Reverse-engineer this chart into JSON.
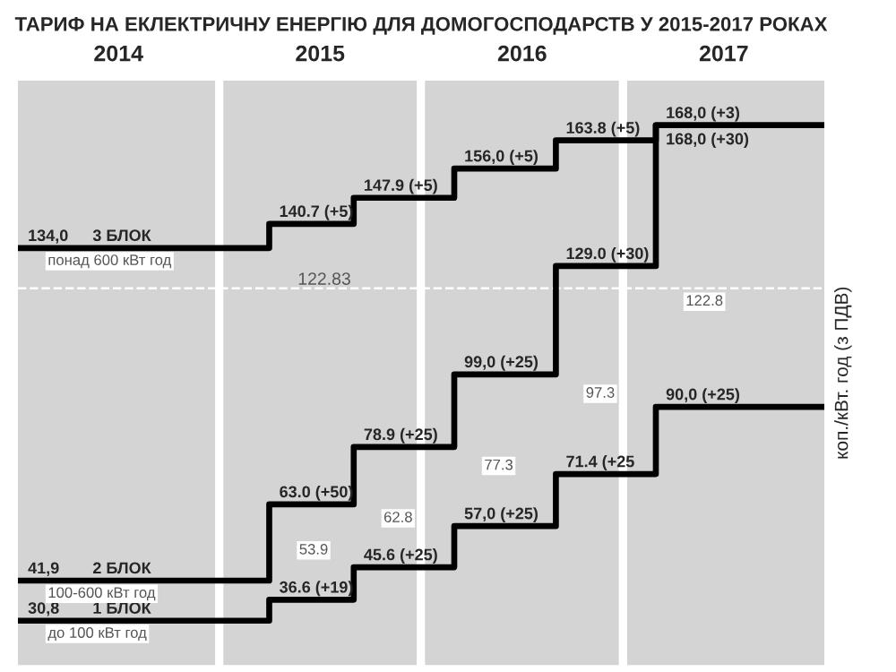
{
  "chart_data": {
    "type": "step",
    "title": "ТАРИФ НА ЕКЛЕКТРИЧНУ ЕНЕРГІЮ ДЛЯ ДОМОГОСПОДАРСТВ У 2015-2017 РОКАХ",
    "ylabel": "коп./кВт. год (з ПДВ)",
    "x": [
      "2014-01-01",
      "2015-04-01",
      "2015-09-01",
      "2016-03-01",
      "2016-09-01",
      "2017-03-01",
      "2017-12-31"
    ],
    "series": [
      {
        "name": "3 БЛОК",
        "color": "#000000",
        "values": [
          134.0,
          140.7,
          147.9,
          156.0,
          163.8,
          168.0,
          168.0
        ],
        "value_labels": [
          "134,0",
          "140.7 (+5)",
          "147.9 (+5)",
          "156,0 (+5)",
          "163.8 (+5)",
          "168,0 (+3)",
          null
        ]
      },
      {
        "name": "2 БЛОК",
        "color": "#000000",
        "values": [
          41.9,
          63.0,
          78.9,
          99.0,
          129.0,
          168.0,
          168.0
        ],
        "value_labels": [
          "41,9",
          "63.0 (+50)",
          "78.9 (+25)",
          "99,0 (+25)",
          "129.0 (+30)",
          "168,0 (+30)",
          null
        ]
      },
      {
        "name": "1 БЛОК",
        "color": "#000000",
        "values": [
          30.8,
          36.6,
          45.6,
          57.0,
          71.4,
          90.0,
          90.0
        ],
        "value_labels": [
          "30,8",
          "36.6 (+19)",
          "45.6 (+25)",
          "57,0 (+25)",
          "71.4 (+25",
          "90,0 (+25)",
          null
        ]
      }
    ],
    "annotations": [
      {
        "text": "понад 600 кВт год",
        "x": "2014-01-01",
        "y": 134.0
      },
      {
        "text": "100-600 кВт год",
        "x": "2014-01-01",
        "y": 41.9
      },
      {
        "text": "до 100 кВт год",
        "x": "2014-01-01",
        "y": 30.8
      },
      {
        "text": "53.9",
        "x": "2015-04-01",
        "y": 53.9
      },
      {
        "text": "62.8",
        "x": "2015-09-01",
        "y": 62.8
      },
      {
        "text": "77.3",
        "x": "2016-03-01",
        "y": 77.3
      },
      {
        "text": "97.3",
        "x": "2016-09-01",
        "y": 97.3
      },
      {
        "text": "122.8",
        "x": "2017-03-01",
        "y": 122.8
      }
    ],
    "ref_lines": [
      {
        "axis": "y",
        "value": 122.83,
        "label": "122.83",
        "color": "#ffffff",
        "line_style": "dashed"
      }
    ],
    "bands": [
      {
        "axis": "x",
        "from": "2014-01-01",
        "to": "2014-12-24",
        "color": "#d4d4d4"
      },
      {
        "axis": "x",
        "from": "2015-01-08",
        "to": "2015-12-24",
        "color": "#d4d4d4"
      },
      {
        "axis": "x",
        "from": "2016-01-08",
        "to": "2016-12-24",
        "color": "#d4d4d4"
      },
      {
        "axis": "x",
        "from": "2017-01-08",
        "to": "2017-12-31",
        "color": "#d4d4d4"
      }
    ],
    "xlim": [
      "2014-01-01",
      "2017-12-31"
    ],
    "xticks": [
      {
        "value": "2014-07-02",
        "label": "2014"
      },
      {
        "value": "2015-07-02",
        "label": "2015"
      },
      {
        "value": "2016-07-02",
        "label": "2016"
      },
      {
        "value": "2017-07-02",
        "label": "2017"
      }
    ],
    "tick_labels": "x",
    "legend": false,
    "grid": false,
    "marker": "none",
    "line_style": "solid"
  }
}
